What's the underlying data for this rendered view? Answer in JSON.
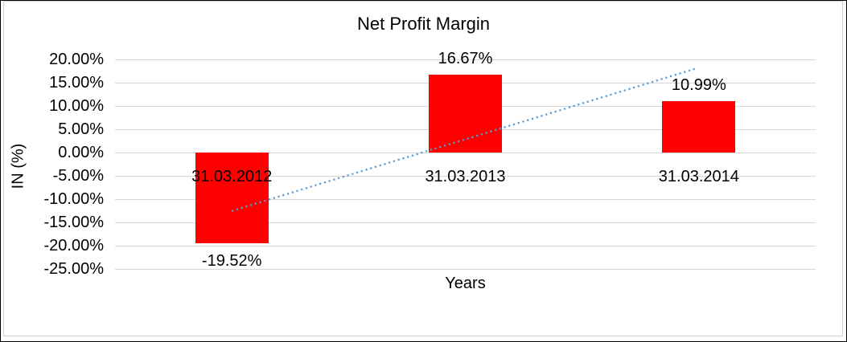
{
  "window": {
    "background": "#ffffff",
    "outer_border_color": "#000000",
    "chart_frame_color": "#d3d3d3"
  },
  "chart_data": {
    "type": "bar",
    "title": "Net Profit Margin",
    "xlabel": "Years",
    "ylabel": "IN (%)",
    "categories": [
      "31.03.2012",
      "31.03.2013",
      "31.03.2014"
    ],
    "series": [
      {
        "name": "Net Profit Margin",
        "values": [
          -19.52,
          16.67,
          10.99
        ],
        "value_labels": [
          "-19.52%",
          "16.67%",
          "10.99%"
        ],
        "color": "#FF0000"
      }
    ],
    "ylim": [
      -25,
      20
    ],
    "ytick_step": 5,
    "ytick_labels": [
      "20.00%",
      "15.00%",
      "10.00%",
      "5.00%",
      "0.00%",
      "-5.00%",
      "-10.00%",
      "-15.00%",
      "-20.00%",
      "-25.00%"
    ],
    "grid": true,
    "gridline_color": "#D6D6D6",
    "legend_position": "none",
    "trendline": {
      "type": "linear",
      "style": "dotted",
      "color": "#5B9BD5",
      "start_value": -12.55,
      "end_value": 17.97
    }
  }
}
